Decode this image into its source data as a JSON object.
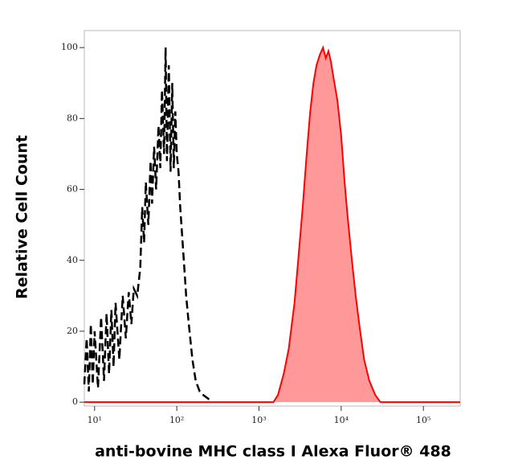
{
  "chart_data": {
    "type": "histogram-overlay",
    "xlabel": "anti-bovine MHC class I Alexa Fluor® 488",
    "ylabel": "Relative Cell Count",
    "xscale": "log",
    "xlim": [
      7.5,
      280000
    ],
    "ylim": [
      -1.1,
      104.8
    ],
    "xticks": [
      {
        "value": 10,
        "label": "10¹"
      },
      {
        "value": 100,
        "label": "10²"
      },
      {
        "value": 1000,
        "label": "10³"
      },
      {
        "value": 10000,
        "label": "10⁴"
      },
      {
        "value": 100000,
        "label": "10⁵"
      }
    ],
    "yticks": [
      0,
      20,
      40,
      60,
      80,
      100
    ],
    "series": [
      {
        "color": "#000000",
        "style": "dashed",
        "fill": false,
        "x": [
          7.5,
          8,
          8.5,
          9,
          9.5,
          10,
          11,
          12,
          13,
          14,
          15,
          16,
          17,
          18,
          20,
          22,
          24,
          26,
          28,
          30,
          33,
          36,
          38,
          40,
          42,
          45,
          48,
          50,
          53,
          56,
          60,
          63,
          66,
          70,
          73,
          76,
          80,
          84,
          88,
          92,
          96,
          100,
          105,
          110,
          120,
          130,
          140,
          155,
          170,
          190,
          210,
          240,
          270
        ],
        "values": [
          5,
          18,
          3,
          22,
          5,
          20,
          4,
          24,
          6,
          25,
          8,
          26,
          10,
          28,
          12,
          30,
          18,
          31,
          22,
          32,
          30,
          38,
          55,
          45,
          62,
          50,
          68,
          56,
          72,
          60,
          78,
          66,
          88,
          70,
          100,
          68,
          95,
          65,
          90,
          66,
          82,
          70,
          65,
          55,
          42,
          30,
          22,
          12,
          6,
          3,
          2,
          1,
          0
        ]
      },
      {
        "color": "#ff0000",
        "style": "solid",
        "fill": true,
        "x": [
          7.5,
          1500,
          1700,
          2000,
          2300,
          2700,
          3000,
          3400,
          3800,
          4200,
          4600,
          5000,
          5500,
          6000,
          6500,
          7000,
          7500,
          8000,
          9000,
          10000,
          11000,
          12000,
          13500,
          15000,
          17000,
          19000,
          22000,
          26000,
          30000,
          280000
        ],
        "values": [
          0,
          0,
          2,
          8,
          15,
          28,
          40,
          55,
          70,
          82,
          90,
          95,
          98,
          100,
          97,
          99,
          96,
          92,
          85,
          75,
          62,
          52,
          40,
          30,
          20,
          12,
          6,
          2,
          0,
          0
        ]
      }
    ]
  }
}
